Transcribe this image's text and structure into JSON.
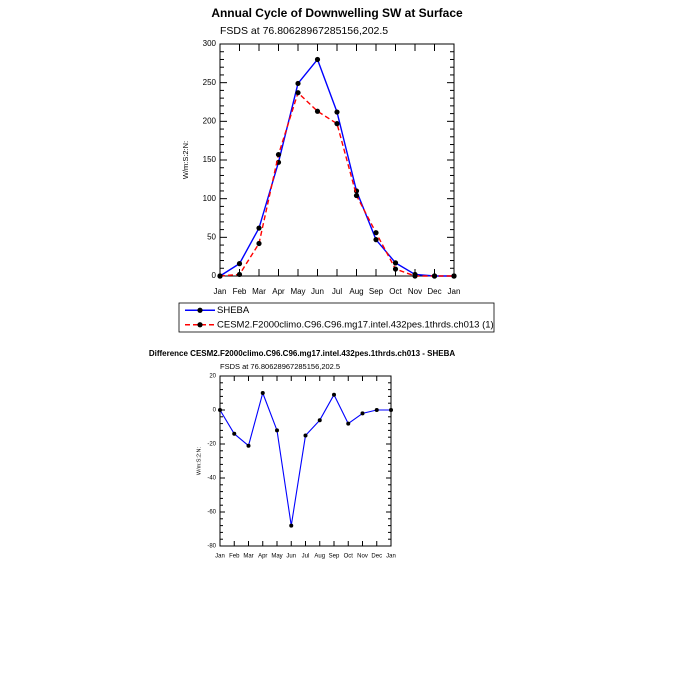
{
  "chart_data": [
    {
      "type": "line",
      "title": "Annual Cycle of Downwelling SW at Surface",
      "subtitle": "FSDS at 76.80628967285156,202.5",
      "y_label": "W/m:S:2:N:",
      "categories": [
        "Jan",
        "Feb",
        "Mar",
        "Apr",
        "May",
        "Jun",
        "Jul",
        "Aug",
        "Sep",
        "Oct",
        "Nov",
        "Dec",
        "Jan"
      ],
      "series": [
        {
          "name": "SHEBA",
          "color": "#0000ff",
          "line_style": "solid",
          "values": [
            0,
            16,
            62,
            147,
            249,
            280,
            212,
            110,
            47,
            17,
            2,
            0,
            0
          ]
        },
        {
          "name": "CESM2.F2000climo.C96.C96.mg17.intel.432pes.1thrds.ch013 (1)",
          "color": "#ff0000",
          "line_style": "dashed",
          "values": [
            0,
            2,
            42,
            157,
            237,
            213,
            197,
            104,
            56,
            9,
            0,
            0,
            0
          ]
        }
      ],
      "marker_color": "#000000",
      "ylim": [
        0,
        300
      ],
      "yticks": [
        0,
        50,
        100,
        150,
        200,
        250,
        300
      ],
      "legend": "bottom"
    },
    {
      "type": "line",
      "title": "Difference CESM2.F2000climo.C96.C96.mg17.intel.432pes.1thrds.ch013 - SHEBA",
      "subtitle": "FSDS at 76.80628967285156,202.5",
      "y_label": "W/m:S:2:N:",
      "categories": [
        "Jan",
        "Feb",
        "Mar",
        "Apr",
        "May",
        "Jun",
        "Jul",
        "Aug",
        "Sep",
        "Oct",
        "Nov",
        "Dec",
        "Jan"
      ],
      "series": [
        {
          "color": "#0000ff",
          "line_style": "solid",
          "values": [
            0,
            -14,
            -21,
            10,
            -12,
            -68,
            -15,
            -6,
            9,
            -8,
            -2,
            0,
            0
          ]
        }
      ],
      "marker_color": "#000000",
      "ylim": [
        -80,
        20
      ],
      "yticks": [
        -80,
        -60,
        -40,
        -20,
        0,
        20
      ]
    }
  ]
}
